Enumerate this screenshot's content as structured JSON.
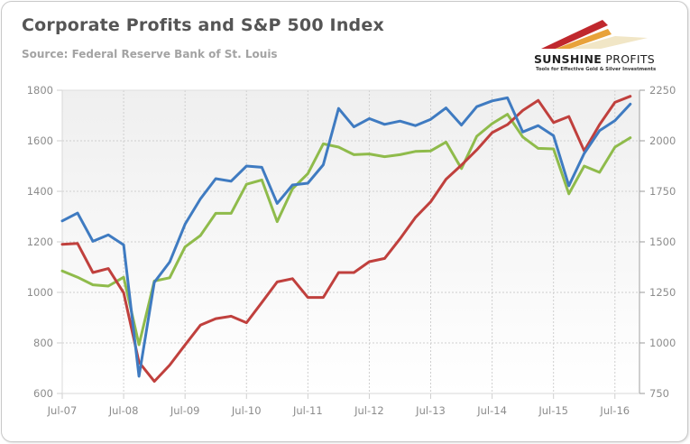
{
  "header": {
    "title": "Corporate Profits and S&P 500 Index",
    "subtitle": "Source: Federal Reserve Bank of St. Louis"
  },
  "logo": {
    "name_bold": "SUNSHINE",
    "name_light": " PROFITS",
    "tagline": "Tools for Effective Gold & Silver Investments",
    "colors": [
      "#c0282d",
      "#e8a23a",
      "#f1e6c6"
    ]
  },
  "chart_data": {
    "type": "line",
    "title": "Corporate Profits and S&P 500 Index",
    "subtitle": "Source: Federal Reserve Bank of St. Louis",
    "xlabel": "",
    "ylabel_left": "",
    "ylabel_right": "",
    "x_tick_labels": [
      "Jul-07",
      "Jul-08",
      "Jul-09",
      "Jul-10",
      "Jul-11",
      "Jul-12",
      "Jul-13",
      "Jul-14",
      "Jul-15",
      "Jul-16"
    ],
    "y_left": {
      "range": [
        600,
        1800
      ],
      "ticks": [
        600,
        800,
        1000,
        1200,
        1400,
        1600,
        1800
      ]
    },
    "y_right": {
      "range": [
        750,
        2250
      ],
      "ticks": [
        750,
        1000,
        1250,
        1500,
        1750,
        2000,
        2250
      ]
    },
    "grid": true,
    "legend": "none",
    "x": [
      "Jul-07",
      "Oct-07",
      "Jan-08",
      "Apr-08",
      "Jul-08",
      "Oct-08",
      "Jan-09",
      "Apr-09",
      "Jul-09",
      "Oct-09",
      "Jan-10",
      "Apr-10",
      "Jul-10",
      "Oct-10",
      "Jan-11",
      "Apr-11",
      "Jul-11",
      "Oct-11",
      "Jan-12",
      "Apr-12",
      "Jul-12",
      "Oct-12",
      "Jan-13",
      "Apr-13",
      "Jul-13",
      "Oct-13",
      "Jan-14",
      "Apr-14",
      "Jul-14",
      "Oct-14",
      "Jan-15",
      "Apr-15",
      "Jul-15",
      "Oct-15",
      "Jan-16",
      "Apr-16",
      "Jul-16",
      "Oct-16"
    ],
    "series": [
      {
        "name": "Series 1 (blue, left axis)",
        "color": "#3f7bc1",
        "axis": "left",
        "values": [
          1283,
          1314,
          1202,
          1228,
          1188,
          668,
          1040,
          1120,
          1270,
          1370,
          1450,
          1440,
          1500,
          1495,
          1352,
          1425,
          1432,
          1505,
          1728,
          1655,
          1688,
          1665,
          1678,
          1660,
          1685,
          1730,
          1662,
          1735,
          1758,
          1770,
          1635,
          1660,
          1620,
          1422,
          1550,
          1640,
          1680,
          1745
        ]
      },
      {
        "name": "Series 2 (red, right axis)",
        "color": "#c0403d",
        "axis": "right",
        "values": [
          1488,
          1492,
          1348,
          1368,
          1248,
          905,
          810,
          890,
          990,
          1088,
          1120,
          1132,
          1100,
          1200,
          1302,
          1318,
          1225,
          1225,
          1348,
          1348,
          1402,
          1418,
          1515,
          1620,
          1698,
          1810,
          1880,
          1955,
          2040,
          2080,
          2150,
          2200,
          2090,
          2120,
          1950,
          2080,
          2190,
          2220
        ]
      },
      {
        "name": "Series 3 (green, left axis)",
        "color": "#8fbb4b",
        "axis": "left",
        "values": [
          1085,
          1060,
          1030,
          1025,
          1060,
          793,
          1045,
          1058,
          1180,
          1225,
          1313,
          1313,
          1428,
          1445,
          1280,
          1410,
          1470,
          1588,
          1575,
          1545,
          1548,
          1537,
          1545,
          1558,
          1560,
          1595,
          1490,
          1618,
          1668,
          1705,
          1615,
          1570,
          1568,
          1390,
          1500,
          1475,
          1575,
          1612
        ]
      }
    ]
  }
}
